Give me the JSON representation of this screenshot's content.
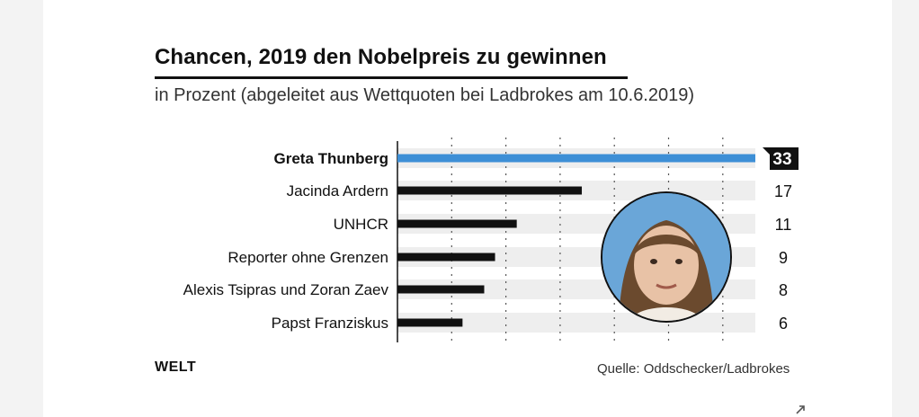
{
  "header": {
    "title": "Chancen, 2019 den Nobelpreis zu gewinnen",
    "subtitle": "in Prozent (abgeleitet aus Wettquoten bei Ladbrokes am 10.6.2019)"
  },
  "footer": {
    "logo": "WELT",
    "source": "Quelle: Oddschecker/Ladbrokes"
  },
  "colors": {
    "highlight_bar": "#3d8fd6",
    "bar": "#111111",
    "row_band": "#eeeeee",
    "value_badge": "#111111"
  },
  "icons": {
    "expand": "expand-arrow-icon",
    "portrait": "portrait-photo"
  },
  "chart_data": {
    "type": "bar",
    "orientation": "horizontal",
    "categories": [
      "Greta Thunberg",
      "Jacinda Ardern",
      "UNHCR",
      "Reporter ohne Grenzen",
      "Alexis Tsipras und Zoran Zaev",
      "Papst Franziskus"
    ],
    "values": [
      33,
      17,
      11,
      9,
      8,
      6
    ],
    "highlight_index": 0,
    "xlim": [
      0,
      33
    ],
    "grid": true,
    "title": "Chancen, 2019 den Nobelpreis zu gewinnen",
    "subtitle": "in Prozent (abgeleitet aus Wettquoten bei Ladbrokes am 10.6.2019)"
  }
}
